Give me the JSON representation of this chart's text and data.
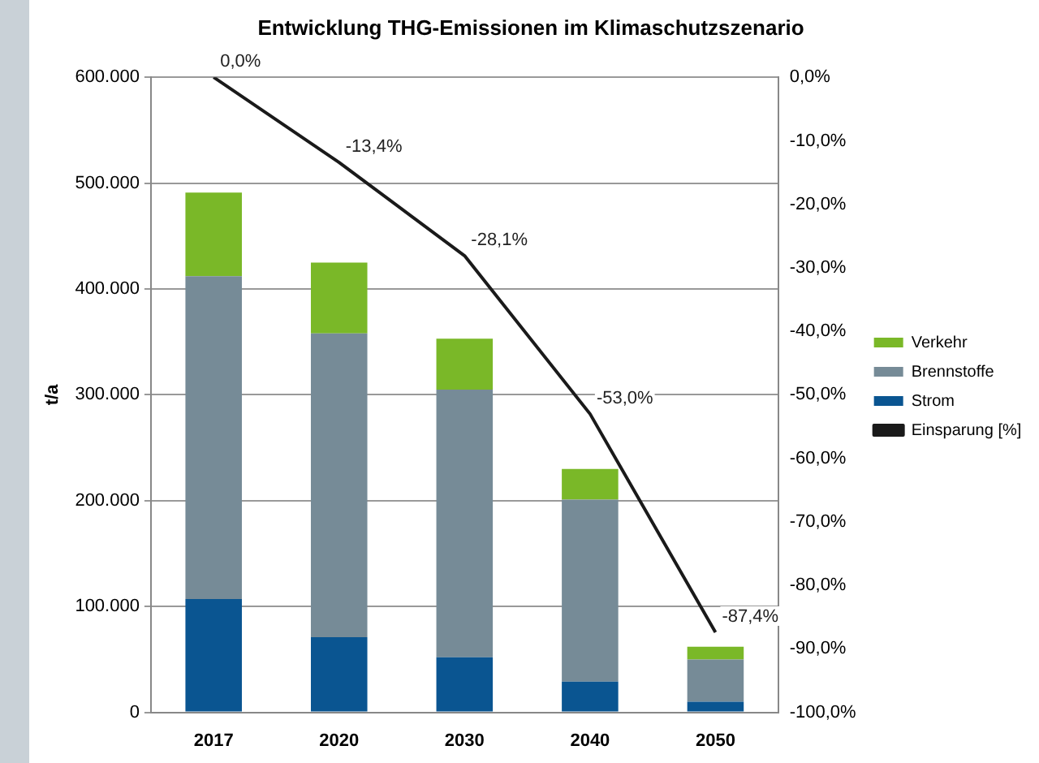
{
  "chart_data": {
    "type": "bar",
    "title": "Entwicklung THG-Emissionen im Klimaschutzszenario",
    "ylabel": "t/a",
    "categories": [
      "2017",
      "2020",
      "2030",
      "2040",
      "2050"
    ],
    "stacked": true,
    "series": [
      {
        "name": "Strom",
        "color": "#0a5591",
        "values": [
          107000,
          71000,
          52000,
          29000,
          10000
        ]
      },
      {
        "name": "Brennstoffe",
        "color": "#768b97",
        "values": [
          305000,
          287000,
          253000,
          172000,
          40000
        ]
      },
      {
        "name": "Verkehr",
        "color": "#7ab828",
        "values": [
          79000,
          67000,
          48000,
          29000,
          12000
        ]
      },
      {
        "name": "Einsparung [%]",
        "type": "line",
        "axis": "y2",
        "color": "#1a1a1a",
        "marker": "none",
        "values": [
          0,
          -13.4,
          -28.1,
          -53.0,
          -87.4
        ],
        "value_labels": [
          "0,0%",
          "-13,4%",
          "-28,1%",
          "-53,0%",
          "-87,4%"
        ]
      }
    ],
    "ylim": [
      0,
      600000
    ],
    "yticks": [
      {
        "value": 0,
        "label": "0"
      },
      {
        "value": 100000,
        "label": "100.000"
      },
      {
        "value": 200000,
        "label": "200.000"
      },
      {
        "value": 300000,
        "label": "300.000"
      },
      {
        "value": 400000,
        "label": "400.000"
      },
      {
        "value": 500000,
        "label": "500.000"
      },
      {
        "value": 600000,
        "label": "600.000"
      }
    ],
    "y2lim": [
      -100,
      0
    ],
    "y2ticks": [
      {
        "value": 0,
        "label": "0,0%"
      },
      {
        "value": -10,
        "label": "-10,0%"
      },
      {
        "value": -20,
        "label": "-20,0%"
      },
      {
        "value": -30,
        "label": "-30,0%"
      },
      {
        "value": -40,
        "label": "-40,0%"
      },
      {
        "value": -50,
        "label": "-50,0%"
      },
      {
        "value": -60,
        "label": "-60,0%"
      },
      {
        "value": -70,
        "label": "-70,0%"
      },
      {
        "value": -80,
        "label": "-80,0%"
      },
      {
        "value": -90,
        "label": "-90,0%"
      },
      {
        "value": -100,
        "label": "-100,0%"
      }
    ],
    "grid": "y",
    "legend": "right"
  }
}
